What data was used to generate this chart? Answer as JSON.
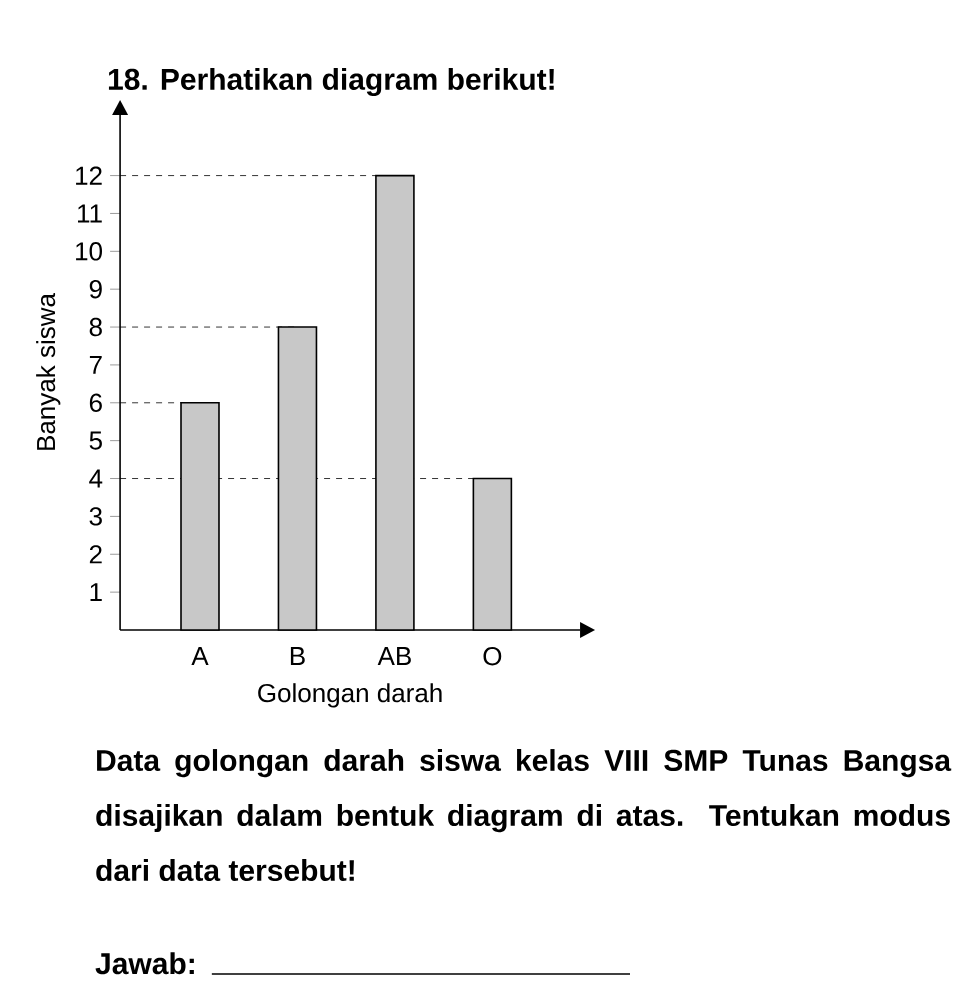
{
  "chart_data": {
    "type": "bar",
    "title": "18. Perhatikan diagram berikut!",
    "xlabel": "Golongan darah",
    "ylabel": "Banyak siswa",
    "categories": [
      "A",
      "B",
      "AB",
      "O"
    ],
    "values": [
      6,
      8,
      12,
      4
    ],
    "color": "#c8c8c8",
    "ylim": [
      0,
      13.6
    ],
    "yticks": [
      1,
      2,
      3,
      4,
      5,
      6,
      7,
      8,
      9,
      10,
      11,
      12
    ],
    "ref_lines": [
      {
        "axis": "y",
        "value": 12,
        "line_style": "dashed"
      },
      {
        "axis": "y",
        "value": 8,
        "line_style": "dashed"
      },
      {
        "axis": "y",
        "value": 6,
        "line_style": "dashed"
      },
      {
        "axis": "y",
        "value": 4,
        "line_style": "dashed"
      }
    ],
    "annotations": [
      "Data golongan darah siswa kelas VIII SMP Tunas Bangsa disajikan dalam bentuk diagram di atas. Tentukan modus dari data tersebut!",
      "Jawab:"
    ]
  }
}
